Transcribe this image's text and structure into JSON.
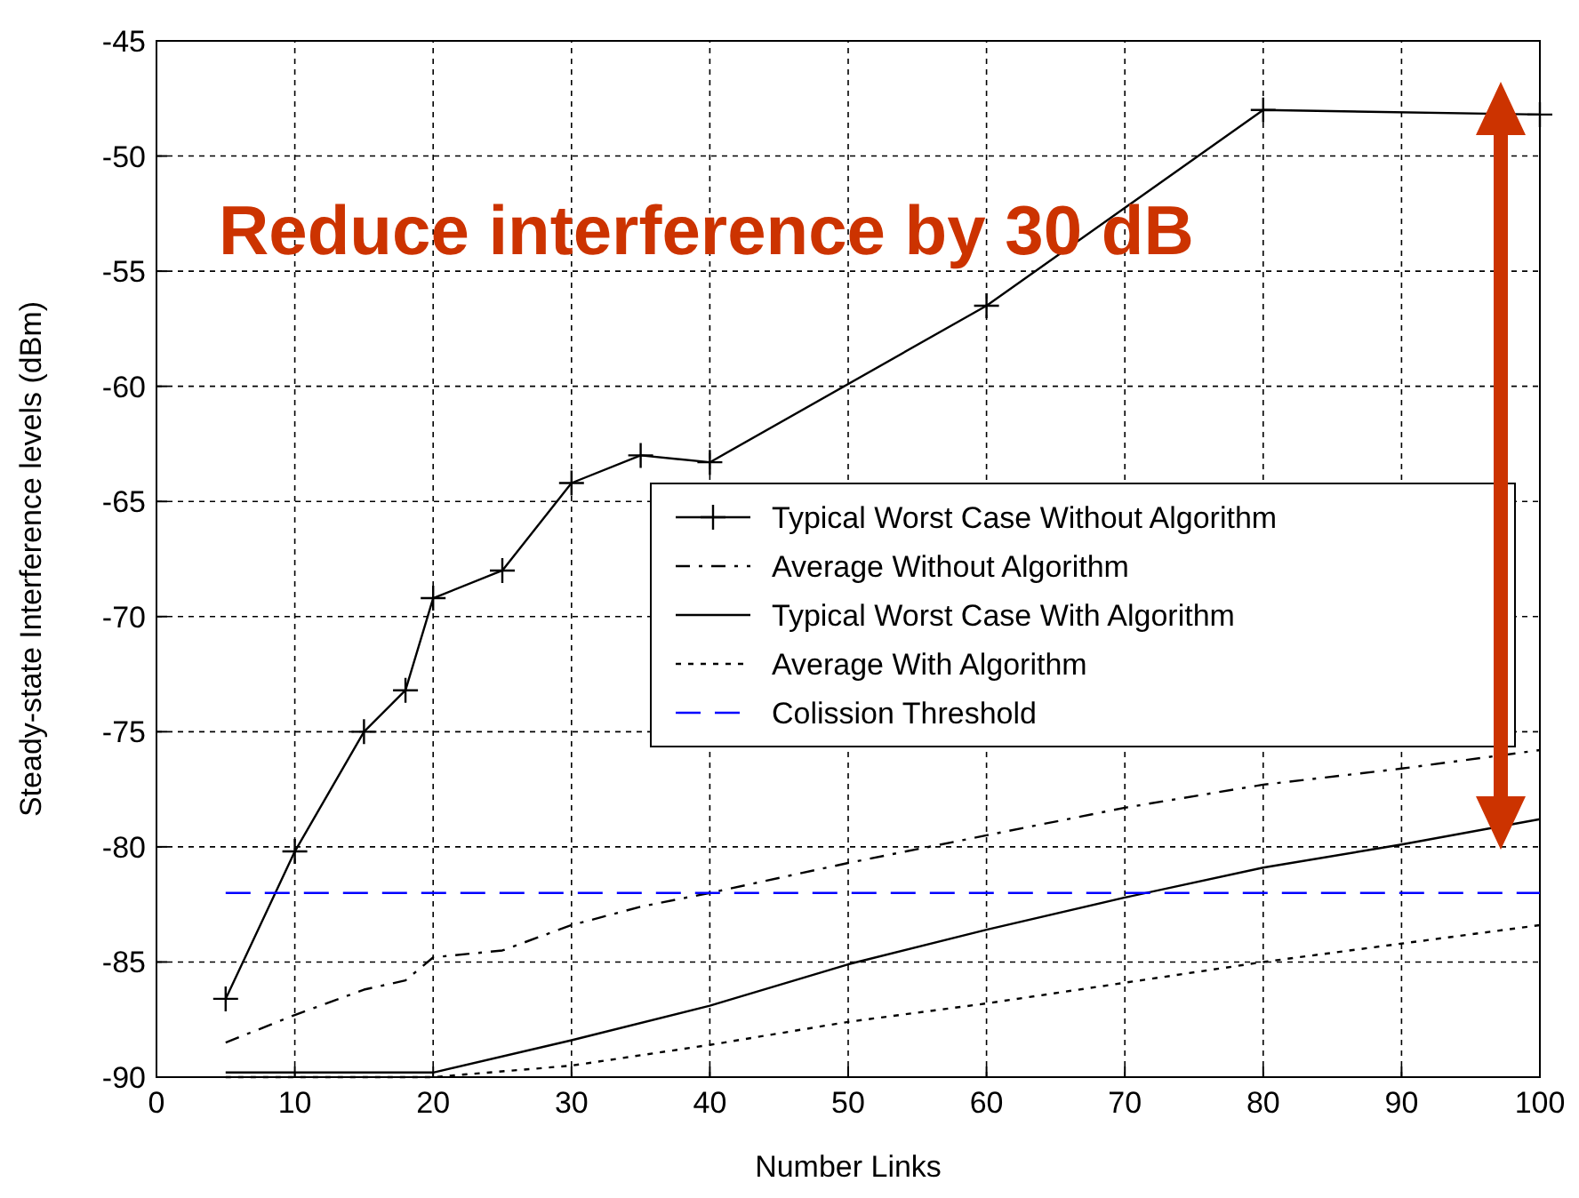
{
  "chart_data": {
    "type": "line",
    "xlabel": "Number Links",
    "ylabel": "Steady-state Interference levels (dBm)",
    "xlim": [
      0,
      100
    ],
    "ylim": [
      -90,
      -45
    ],
    "xticks": [
      0,
      10,
      20,
      30,
      40,
      50,
      60,
      70,
      80,
      90,
      100
    ],
    "yticks": [
      -90,
      -85,
      -80,
      -75,
      -70,
      -65,
      -60,
      -55,
      -50,
      -45
    ],
    "grid": true,
    "legend": "right",
    "annotations": [
      "Reduce interference by 30 dB"
    ],
    "series": [
      {
        "name": "Typical Worst Case Without Algorithm",
        "color": "#000000",
        "marker": "cross",
        "line_style": "solid",
        "x": [
          5,
          10,
          15,
          18,
          20,
          25,
          30,
          35,
          40,
          60,
          80,
          100
        ],
        "values": [
          -86.6,
          -80.2,
          -75,
          -73.2,
          -69.2,
          -68,
          -64.2,
          -63,
          -63.3,
          -56.5,
          -48,
          -48.2
        ]
      },
      {
        "name": "Average Without Algorithm",
        "color": "#000000",
        "marker": "none",
        "line_style": "dashdot",
        "x": [
          5,
          10,
          15,
          18,
          20,
          25,
          30,
          35,
          40,
          50,
          60,
          70,
          80,
          90,
          100
        ],
        "values": [
          -88.5,
          -87.3,
          -86.2,
          -85.8,
          -84.8,
          -84.5,
          -83.4,
          -82.6,
          -82,
          -80.7,
          -79.5,
          -78.3,
          -77.3,
          -76.6,
          -75.8
        ]
      },
      {
        "name": "Typical Worst Case With Algorithm",
        "color": "#000000",
        "marker": "none",
        "line_style": "solid",
        "x": [
          5,
          10,
          20,
          30,
          40,
          50,
          60,
          70,
          80,
          90,
          100
        ],
        "values": [
          -89.8,
          -89.8,
          -89.8,
          -88.4,
          -86.9,
          -85.1,
          -83.6,
          -82.2,
          -80.9,
          -79.9,
          -78.8
        ]
      },
      {
        "name": "Average With Algorithm",
        "color": "#000000",
        "marker": "none",
        "line_style": "dotted",
        "x": [
          5,
          10,
          20,
          30,
          40,
          50,
          60,
          70,
          80,
          90,
          100
        ],
        "values": [
          -90,
          -90,
          -90,
          -89.5,
          -88.6,
          -87.6,
          -86.8,
          -85.9,
          -85,
          -84.2,
          -83.4
        ]
      },
      {
        "name": "Colission Threshold",
        "color": "#0000ff",
        "marker": "none",
        "line_style": "dashed",
        "x": [
          5,
          100
        ],
        "values": [
          -82,
          -82
        ]
      }
    ]
  }
}
